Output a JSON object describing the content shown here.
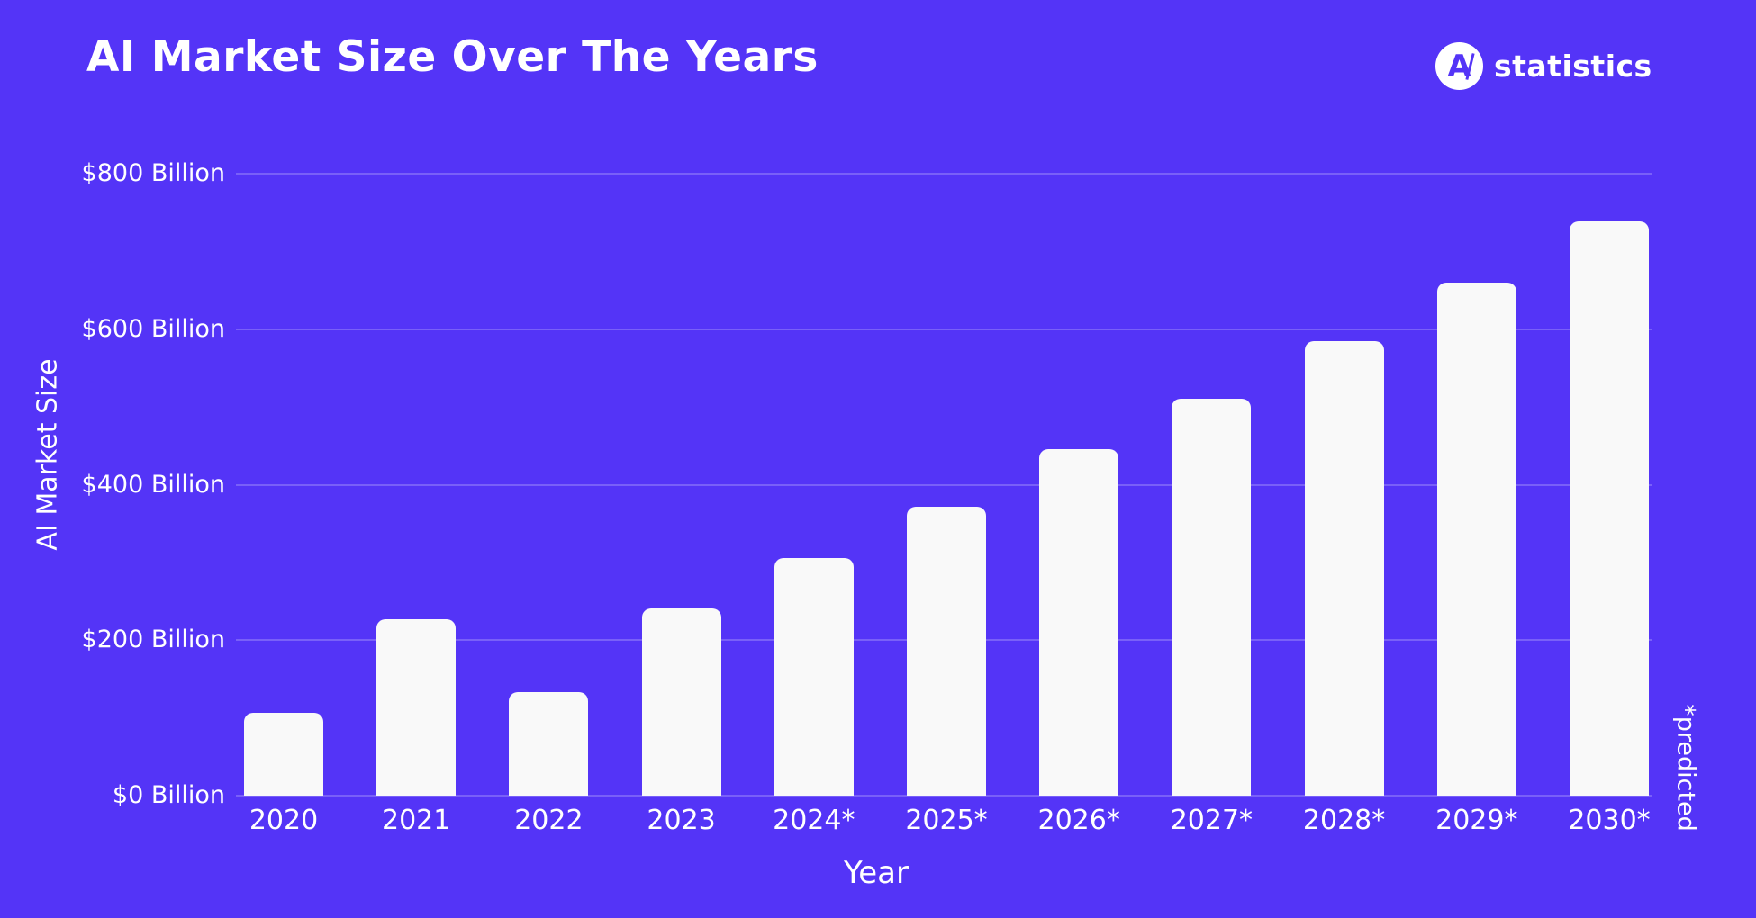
{
  "title": "AI Market Size Over The Years",
  "brand": {
    "name": "statistics",
    "icon_letter": "A"
  },
  "chart_data": {
    "type": "bar",
    "title": "AI Market Size Over The Years",
    "categories": [
      "2020",
      "2021",
      "2022",
      "2023",
      "2024*",
      "2025*",
      "2026*",
      "2027*",
      "2028*",
      "2029*",
      "2030*"
    ],
    "values": [
      107,
      227,
      133,
      241,
      306,
      372,
      446,
      511,
      585,
      660,
      739
    ],
    "unit": "USD Billion",
    "xlabel": "Year",
    "ylabel": "AI Market Size",
    "ylim": [
      0,
      800
    ],
    "ytick_labels": [
      "$0 Billion",
      "$200 Billion",
      "$400 Billion",
      "$600 Billion",
      "$800 Billion"
    ],
    "grid": true,
    "legend": false,
    "annotation": "*predicted",
    "colors": {
      "background": "#5434F7",
      "bar": "#F9F9F9",
      "text": "#FFFFFF",
      "gridline": "rgba(255,255,255,0.22)"
    }
  }
}
